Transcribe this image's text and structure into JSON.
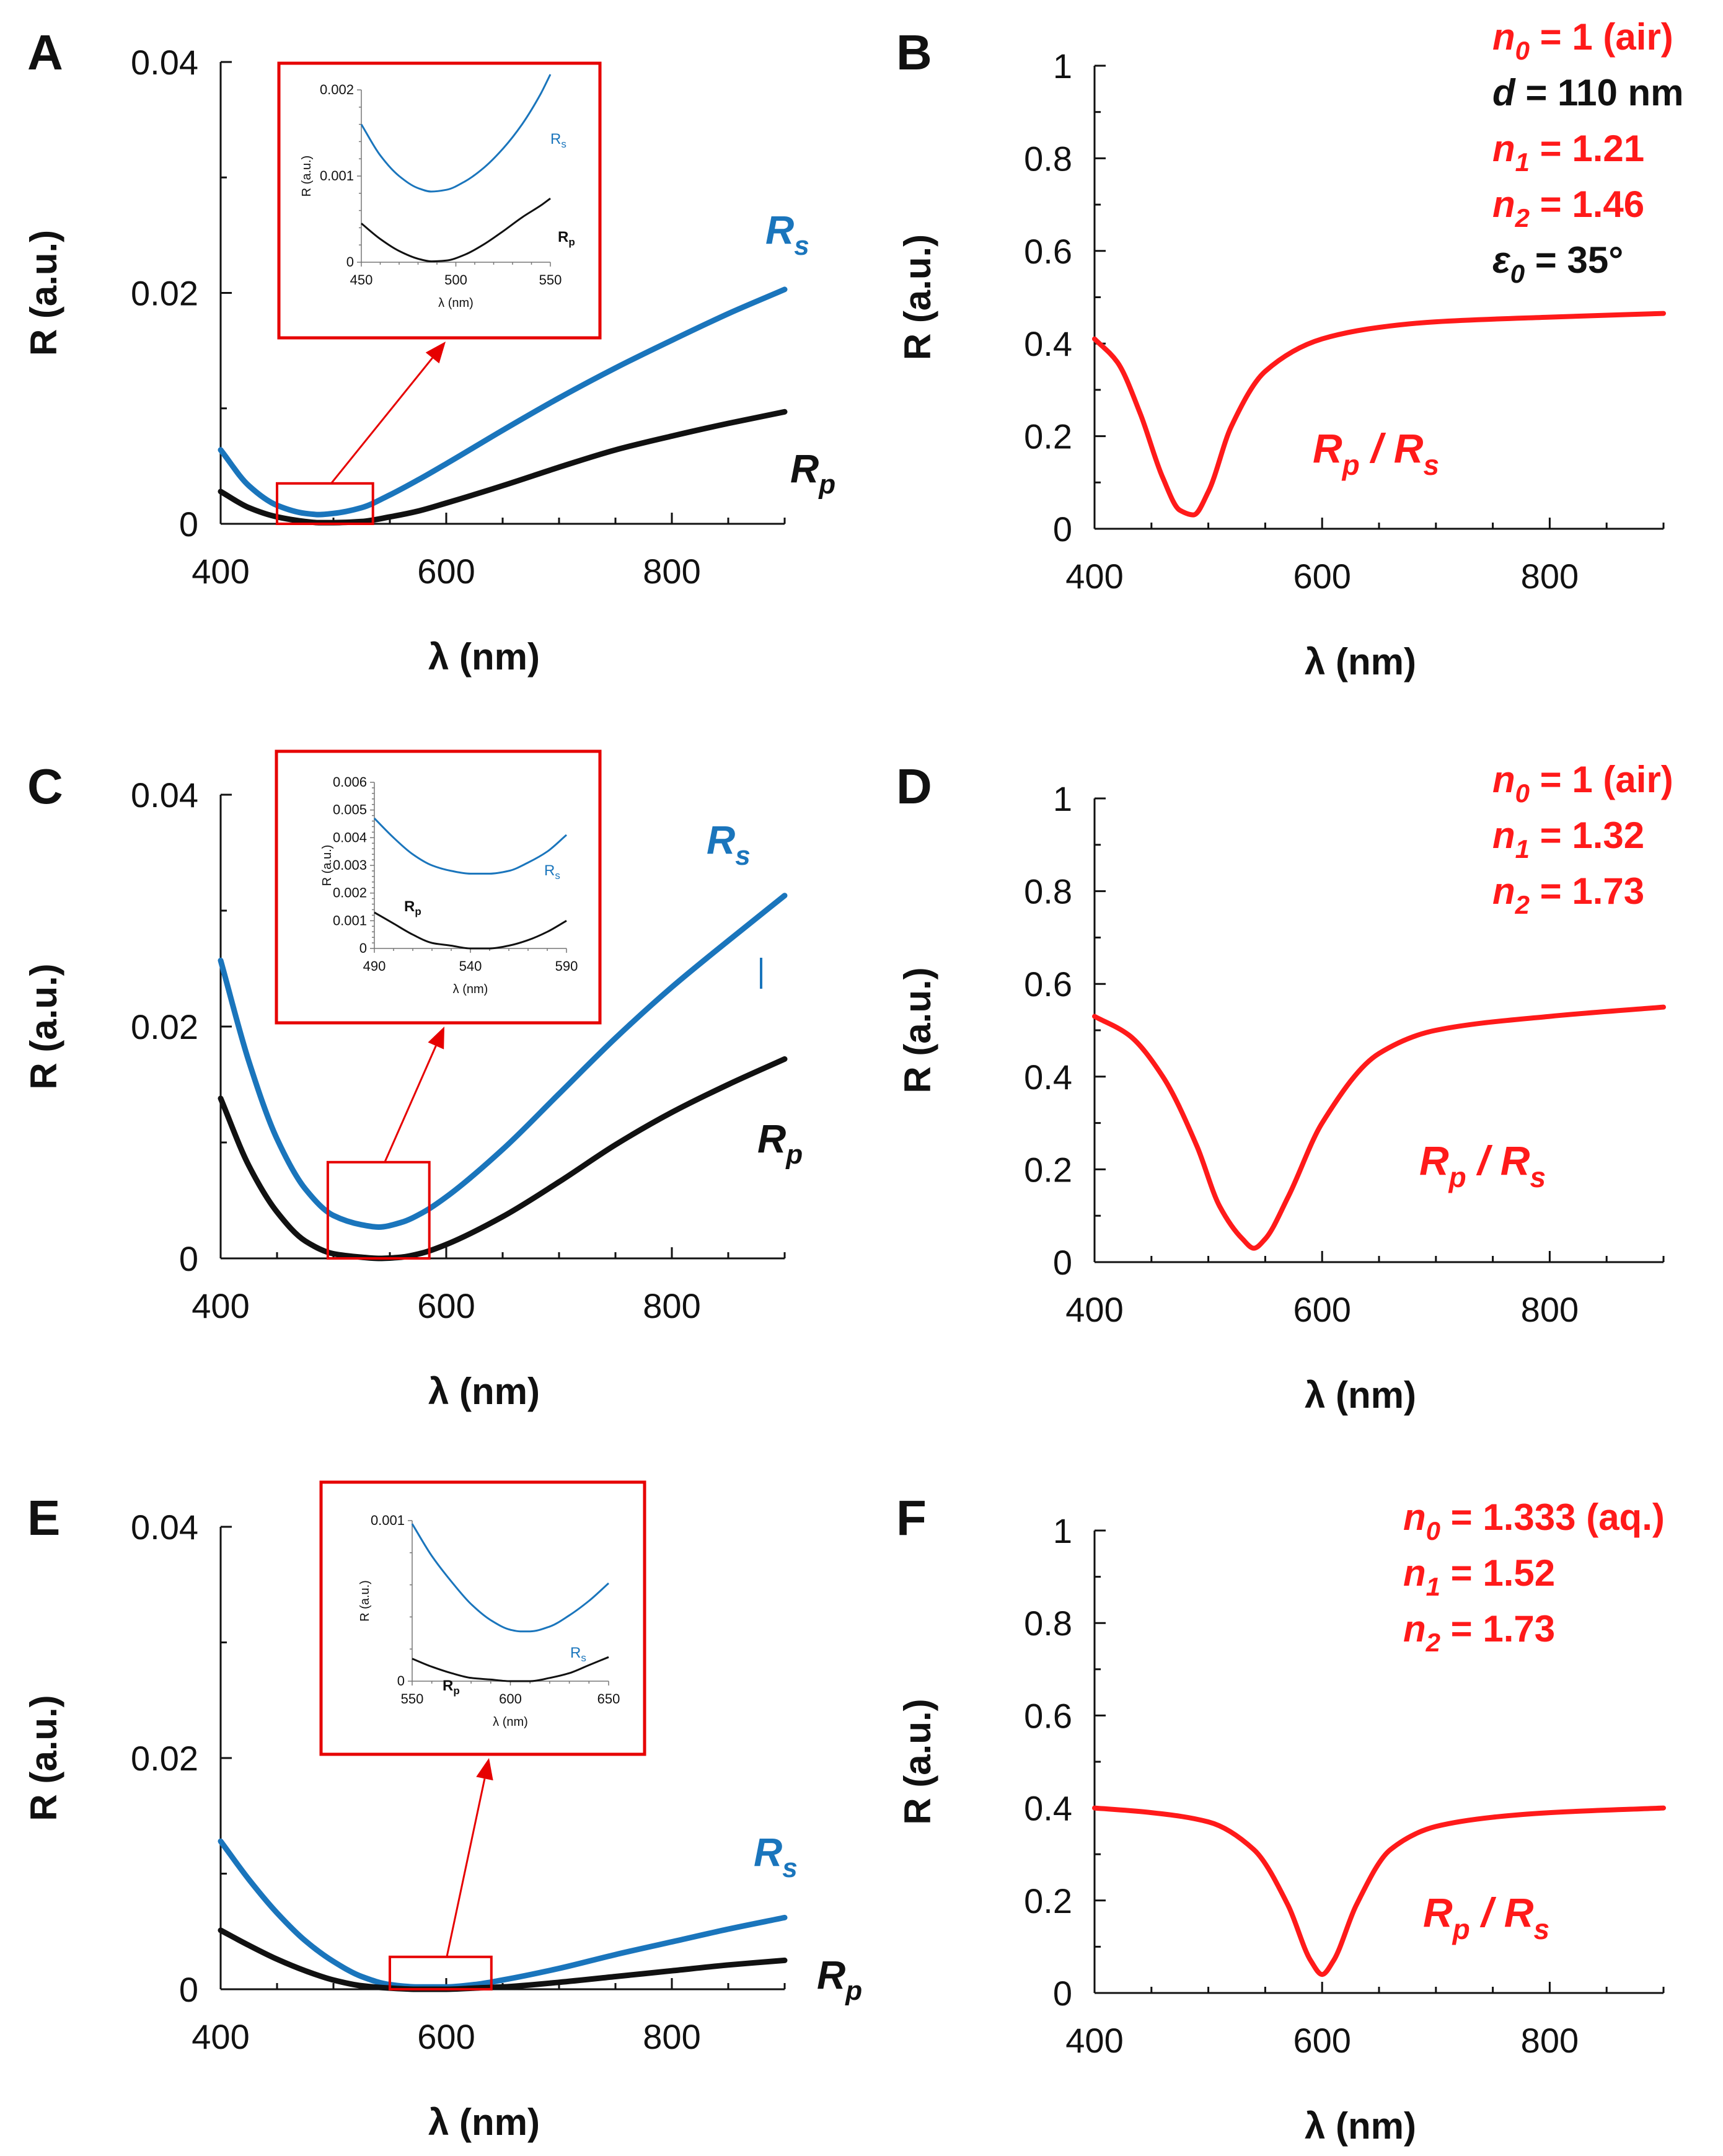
{
  "colors": {
    "rs": "#1a75bc",
    "rp": "#111111",
    "ratio": "#ff1a1a",
    "inset_border": "#e60000",
    "param_red": "#ff1a1a",
    "param_black": "#111111"
  },
  "chart_data": [
    {
      "id": "A",
      "panel": "A",
      "type": "line",
      "xlabel": "λ (nm)",
      "ylabel": "R (a.u.)",
      "xlim": [
        400,
        900
      ],
      "ylim": [
        0,
        0.04
      ],
      "xticks": [
        400,
        600,
        800
      ],
      "yticks": [
        0,
        0.02,
        0.04
      ],
      "xtick_labels": [
        "400",
        "600",
        "800"
      ],
      "ytick_labels": [
        "0",
        "0.02",
        "0.04"
      ],
      "x": [
        400,
        425,
        450,
        475,
        487,
        500,
        525,
        550,
        575,
        600,
        650,
        700,
        750,
        800,
        850,
        900
      ],
      "series": [
        {
          "name": "Rs",
          "values": [
            0.0064,
            0.0033,
            0.0016,
            0.0009,
            0.0008,
            0.0009,
            0.0014,
            0.0025,
            0.0038,
            0.0052,
            0.0081,
            0.0109,
            0.0135,
            0.0159,
            0.0182,
            0.0203
          ]
        },
        {
          "name": "Rp",
          "values": [
            0.0028,
            0.0014,
            0.0006,
            0.0002,
            0.0001,
            0.0001,
            0.0002,
            0.0006,
            0.0011,
            0.0018,
            0.0033,
            0.0049,
            0.0064,
            0.0076,
            0.0087,
            0.0097
          ]
        }
      ],
      "series_labels": {
        "rs": "R",
        "rs_sub": "s",
        "rp": "R",
        "rp_sub": "p"
      },
      "inset": {
        "xlabel": "λ (nm)",
        "ylabel": "R (a.u.)",
        "xlim": [
          450,
          550
        ],
        "ylim": [
          0,
          0.002
        ],
        "xtick_labels": [
          "450",
          "500",
          "550"
        ],
        "xticks": [
          450,
          500,
          550
        ],
        "ytick_labels": [
          "0",
          "0.001",
          "0.002"
        ],
        "yticks": [
          0,
          0.001,
          0.002
        ],
        "x": [
          450,
          460,
          470,
          480,
          487,
          495,
          505,
          515,
          525,
          535,
          545,
          550
        ],
        "series": [
          {
            "name": "Rs",
            "values": [
              0.0016,
              0.00124,
              0.001,
              0.00086,
              0.00082,
              0.00084,
              0.00094,
              0.0011,
              0.00132,
              0.0016,
              0.00196,
              0.00218
            ]
          },
          {
            "name": "Rp",
            "values": [
              0.00045,
              0.00027,
              0.00013,
              4e-05,
              1e-05,
              2e-05,
              9e-05,
              0.00021,
              0.00036,
              0.00052,
              0.00066,
              0.00074
            ]
          }
        ],
        "label_rs": "R",
        "label_rs_sub": "s",
        "label_rp": "R",
        "label_rp_sub": "p"
      },
      "zoom_box": {
        "x0": 450,
        "x1": 535,
        "y0": 0,
        "y1": 0.0035
      }
    },
    {
      "id": "B",
      "panel": "B",
      "type": "line",
      "xlabel": "λ (nm)",
      "ylabel": "R (a.u.)",
      "xlim": [
        400,
        900
      ],
      "ylim": [
        0,
        1
      ],
      "xticks": [
        400,
        600,
        800
      ],
      "yticks": [
        0,
        0.2,
        0.4,
        0.6,
        0.8,
        1
      ],
      "xtick_labels": [
        "400",
        "600",
        "800"
      ],
      "ytick_labels": [
        "0",
        "0.2",
        "0.4",
        "0.6",
        "0.8",
        "1"
      ],
      "x": [
        400,
        420,
        440,
        460,
        475,
        487,
        500,
        520,
        550,
        600,
        650,
        700,
        800,
        900
      ],
      "series": [
        {
          "name": "Rp / Rs",
          "values": [
            0.41,
            0.36,
            0.25,
            0.11,
            0.04,
            0.03,
            0.08,
            0.22,
            0.34,
            0.41,
            0.435,
            0.447,
            0.457,
            0.465
          ]
        }
      ],
      "series_label": {
        "a": "R",
        "a_sub": "p",
        "sep": " / ",
        "b": "R",
        "b_sub": "s"
      },
      "annotations": [
        {
          "sym": "n",
          "sub": "0",
          "rest": " = 1 (air)",
          "color": "red"
        },
        {
          "sym": "d",
          "sub": "",
          "rest": " = 110 nm",
          "color": "black"
        },
        {
          "sym": "n",
          "sub": "1",
          "rest": " = 1.21",
          "color": "red"
        },
        {
          "sym": "n",
          "sub": "2",
          "rest": " = 1.46",
          "color": "red"
        },
        {
          "sym": "ε",
          "sub": "0",
          "rest": " = 35°",
          "color": "black"
        }
      ]
    },
    {
      "id": "C",
      "panel": "C",
      "type": "line",
      "xlabel": "λ (nm)",
      "ylabel": "R (a.u.)",
      "xlim": [
        400,
        900
      ],
      "ylim": [
        0,
        0.04
      ],
      "xticks": [
        400,
        600,
        800
      ],
      "yticks": [
        0,
        0.02,
        0.04
      ],
      "xtick_labels": [
        "400",
        "600",
        "800"
      ],
      "ytick_labels": [
        "0",
        "0.02",
        "0.04"
      ],
      "x": [
        400,
        425,
        450,
        475,
        500,
        525,
        540,
        560,
        580,
        600,
        650,
        700,
        750,
        800,
        850,
        900
      ],
      "series": [
        {
          "name": "Rs",
          "values": [
            0.0257,
            0.017,
            0.0103,
            0.006,
            0.0037,
            0.0029,
            0.0027,
            0.0031,
            0.004,
            0.0053,
            0.0094,
            0.0142,
            0.019,
            0.0234,
            0.0274,
            0.0313
          ]
        },
        {
          "name": "Rp",
          "values": [
            0.0138,
            0.008,
            0.004,
            0.0015,
            0.0004,
            0.0001,
            0.0,
            0.0001,
            0.0005,
            0.0012,
            0.0036,
            0.0066,
            0.0098,
            0.0126,
            0.015,
            0.0172
          ]
        }
      ],
      "series_labels": {
        "rs": "R",
        "rs_sub": "s",
        "rp": "R",
        "rp_sub": "p"
      },
      "inset": {
        "xlabel": "λ (nm)",
        "ylabel": "R (a.u.)",
        "xlim": [
          490,
          590
        ],
        "ylim": [
          0,
          0.006
        ],
        "xtick_labels": [
          "490",
          "540",
          "590"
        ],
        "xticks": [
          490,
          540,
          590
        ],
        "ytick_labels": [
          "0",
          "0.001",
          "0.002",
          "0.003",
          "0.004",
          "0.005",
          "0.006"
        ],
        "yticks": [
          0,
          0.001,
          0.002,
          0.003,
          0.004,
          0.005,
          0.006
        ],
        "x": [
          490,
          500,
          510,
          520,
          530,
          540,
          550,
          560,
          570,
          580,
          590
        ],
        "series": [
          {
            "name": "Rs",
            "values": [
              0.0047,
              0.004,
              0.0034,
              0.003,
              0.0028,
              0.0027,
              0.0027,
              0.0028,
              0.0031,
              0.0035,
              0.0041
            ]
          },
          {
            "name": "Rp",
            "values": [
              0.0013,
              0.0009,
              0.0005,
              0.0002,
              0.0001,
              0.0,
              0.0,
              0.0001,
              0.0003,
              0.0006,
              0.001
            ]
          }
        ],
        "label_rs": "R",
        "label_rs_sub": "s",
        "label_rp": "R",
        "label_rp_sub": "p"
      },
      "zoom_box": {
        "x0": 495,
        "x1": 585,
        "y0": 0,
        "y1": 0.0083
      }
    },
    {
      "id": "D",
      "panel": "D",
      "type": "line",
      "xlabel": "λ (nm)",
      "ylabel": "R (a.u.)",
      "xlim": [
        400,
        900
      ],
      "ylim": [
        0,
        1
      ],
      "xticks": [
        400,
        600,
        800
      ],
      "yticks": [
        0,
        0.2,
        0.4,
        0.6,
        0.8,
        1
      ],
      "xtick_labels": [
        "400",
        "600",
        "800"
      ],
      "ytick_labels": [
        "0",
        "0.2",
        "0.4",
        "0.6",
        "0.8",
        "1"
      ],
      "x": [
        400,
        430,
        460,
        490,
        510,
        530,
        540,
        550,
        570,
        600,
        650,
        700,
        800,
        900
      ],
      "series": [
        {
          "name": "Rp / Rs",
          "values": [
            0.53,
            0.49,
            0.4,
            0.25,
            0.12,
            0.05,
            0.03,
            0.05,
            0.14,
            0.3,
            0.45,
            0.5,
            0.53,
            0.55
          ]
        }
      ],
      "series_label": {
        "a": "R",
        "a_sub": "p",
        "sep": " / ",
        "b": "R",
        "b_sub": "s"
      },
      "annotations": [
        {
          "sym": "n",
          "sub": "0",
          "rest": " = 1 (air)",
          "color": "red"
        },
        {
          "sym": "n",
          "sub": "1",
          "rest": " = 1.32",
          "color": "red"
        },
        {
          "sym": "n",
          "sub": "2",
          "rest": " = 1.73",
          "color": "red"
        }
      ]
    },
    {
      "id": "E",
      "panel": "E",
      "type": "line",
      "xlabel": "λ (nm)",
      "ylabel": "R (a.u.)",
      "xlim": [
        400,
        900
      ],
      "ylim": [
        0,
        0.04
      ],
      "xticks": [
        400,
        600,
        800
      ],
      "yticks": [
        0,
        0.02,
        0.04
      ],
      "xtick_labels": [
        "400",
        "600",
        "800"
      ],
      "ytick_labels": [
        "0",
        "0.02",
        "0.04"
      ],
      "x": [
        400,
        425,
        450,
        475,
        500,
        525,
        550,
        575,
        600,
        625,
        650,
        700,
        750,
        800,
        850,
        900
      ],
      "series": [
        {
          "name": "Rs",
          "values": [
            0.0128,
            0.0095,
            0.0066,
            0.0042,
            0.0024,
            0.0011,
            0.0004,
            0.0002,
            0.0002,
            0.0004,
            0.0008,
            0.0018,
            0.003,
            0.0041,
            0.0052,
            0.0062
          ]
        },
        {
          "name": "Rp",
          "values": [
            0.0051,
            0.0038,
            0.0026,
            0.0016,
            0.0008,
            0.0003,
            0.0001,
            0.0,
            0.0,
            0.0001,
            0.0002,
            0.0006,
            0.0011,
            0.0016,
            0.0021,
            0.0025
          ]
        }
      ],
      "series_labels": {
        "rs": "R",
        "rs_sub": "s",
        "rp": "R",
        "rp_sub": "p"
      },
      "inset": {
        "xlabel": "λ (nm)",
        "ylabel": "R (a.u.)",
        "xlim": [
          550,
          650
        ],
        "ylim": [
          0,
          0.001
        ],
        "xtick_labels": [
          "550",
          "600",
          "650"
        ],
        "xticks": [
          550,
          600,
          650
        ],
        "ytick_labels": [
          "0",
          "0.001"
        ],
        "yticks": [
          0,
          0.001
        ],
        "x": [
          550,
          560,
          570,
          580,
          590,
          600,
          605,
          610,
          620,
          630,
          640,
          650
        ],
        "series": [
          {
            "name": "Rs",
            "values": [
              0.00098,
              0.00078,
              0.00062,
              0.00048,
              0.00038,
              0.00032,
              0.00031,
              0.00031,
              0.00034,
              0.00041,
              0.0005,
              0.00061
            ]
          },
          {
            "name": "Rp",
            "values": [
              0.00014,
              9e-05,
              5e-05,
              2e-05,
              1e-05,
              0.0,
              0.0,
              0.0,
              2e-05,
              5e-05,
              0.0001,
              0.00015
            ]
          }
        ],
        "label_rs": "R",
        "label_rs_sub": "s",
        "label_rp": "R",
        "label_rp_sub": "p"
      },
      "zoom_box": {
        "x0": 550,
        "x1": 640,
        "y0": 0,
        "y1": 0.0028
      }
    },
    {
      "id": "F",
      "panel": "F",
      "type": "line",
      "xlabel": "λ (nm)",
      "ylabel": "R (a.u.)",
      "xlim": [
        400,
        900
      ],
      "ylim": [
        0,
        1
      ],
      "xticks": [
        400,
        600,
        800
      ],
      "yticks": [
        0,
        0.2,
        0.4,
        0.6,
        0.8,
        1
      ],
      "xtick_labels": [
        "400",
        "600",
        "800"
      ],
      "ytick_labels": [
        "0",
        "0.2",
        "0.4",
        "0.6",
        "0.8",
        "1"
      ],
      "x": [
        400,
        450,
        500,
        540,
        570,
        590,
        600,
        610,
        630,
        660,
        700,
        750,
        800,
        900
      ],
      "series": [
        {
          "name": "Rp / Rs",
          "values": [
            0.4,
            0.39,
            0.37,
            0.31,
            0.19,
            0.07,
            0.04,
            0.07,
            0.19,
            0.31,
            0.36,
            0.38,
            0.39,
            0.4
          ]
        }
      ],
      "series_label": {
        "a": "R",
        "a_sub": "p",
        "sep": " / ",
        "b": "R",
        "b_sub": "s"
      },
      "annotations": [
        {
          "sym": "n",
          "sub": "0",
          "rest": " = 1.333 (aq.)",
          "color": "red"
        },
        {
          "sym": "n",
          "sub": "1",
          "rest": " = 1.52",
          "color": "red"
        },
        {
          "sym": "n",
          "sub": "2",
          "rest": " = 1.73",
          "color": "red"
        }
      ]
    }
  ]
}
